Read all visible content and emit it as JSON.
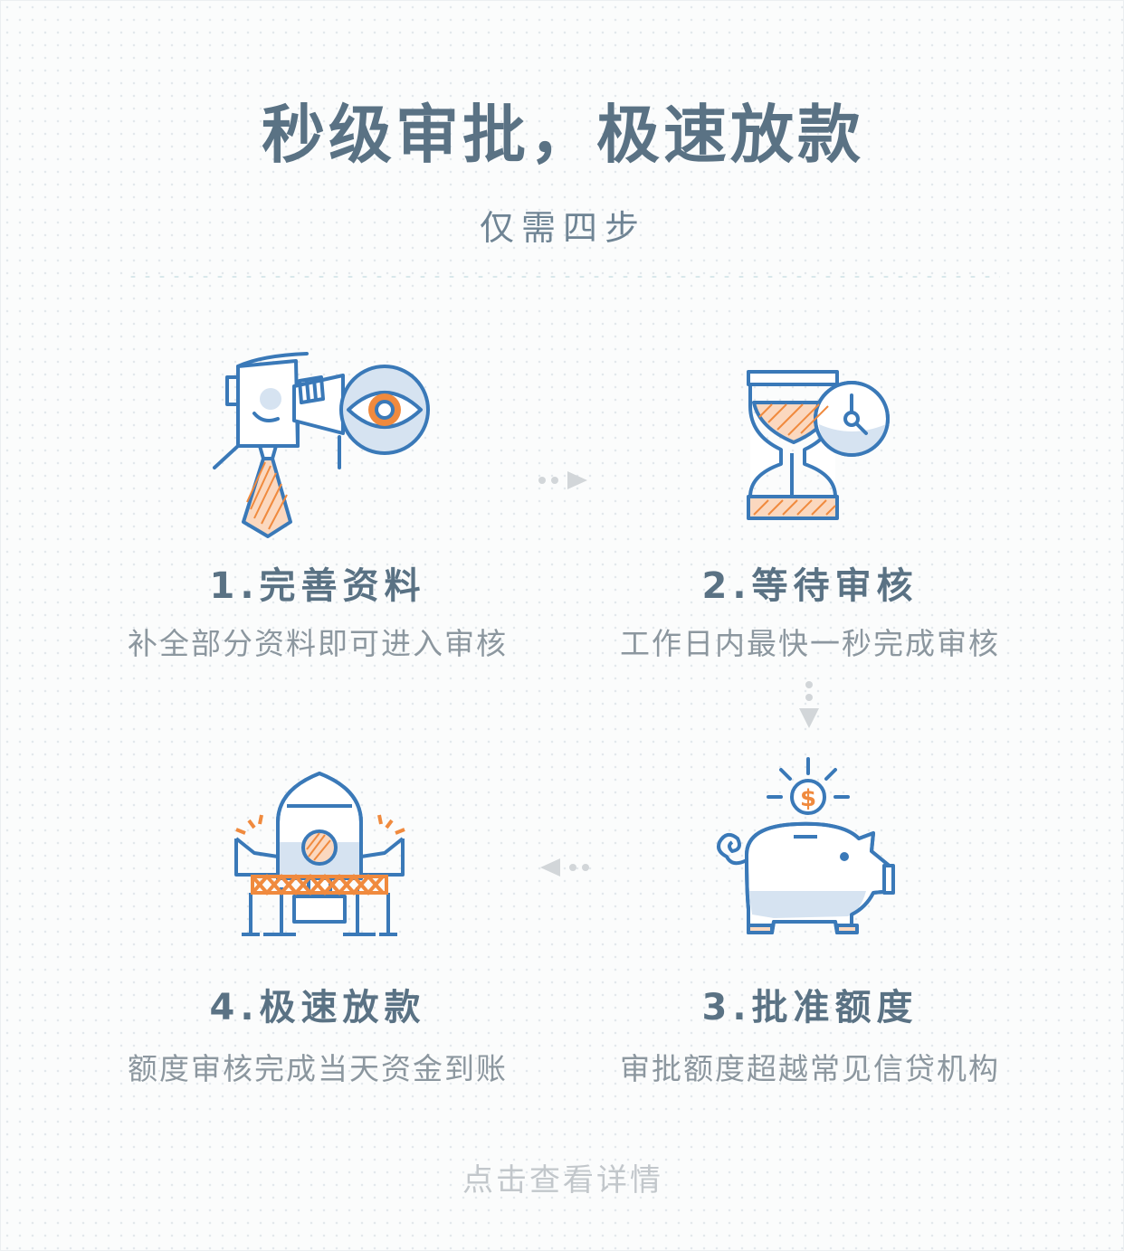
{
  "header": {
    "title": "秒级审批，极速放款",
    "subtitle": "仅需四步"
  },
  "steps": [
    {
      "title": "1.完善资料",
      "desc": "补全部分资料即可进入审核",
      "icon": "binocular-person-icon"
    },
    {
      "title": "2.等待审核",
      "desc": "工作日内最快一秒完成审核",
      "icon": "hourglass-clock-icon"
    },
    {
      "title": "3.批准额度",
      "desc": "审批额度超越常见信贷机构",
      "icon": "piggy-bank-icon"
    },
    {
      "title": "4.极速放款",
      "desc": "额度审核完成当天资金到账",
      "icon": "rocket-icon"
    }
  ],
  "footer": {
    "cta_label": "点击查看详情"
  },
  "colors": {
    "blue": "#3a79b8",
    "orange": "#f08a3e",
    "light_blue": "#d6e3f1",
    "title_text": "#5a7284",
    "desc_text": "#8c979f"
  }
}
